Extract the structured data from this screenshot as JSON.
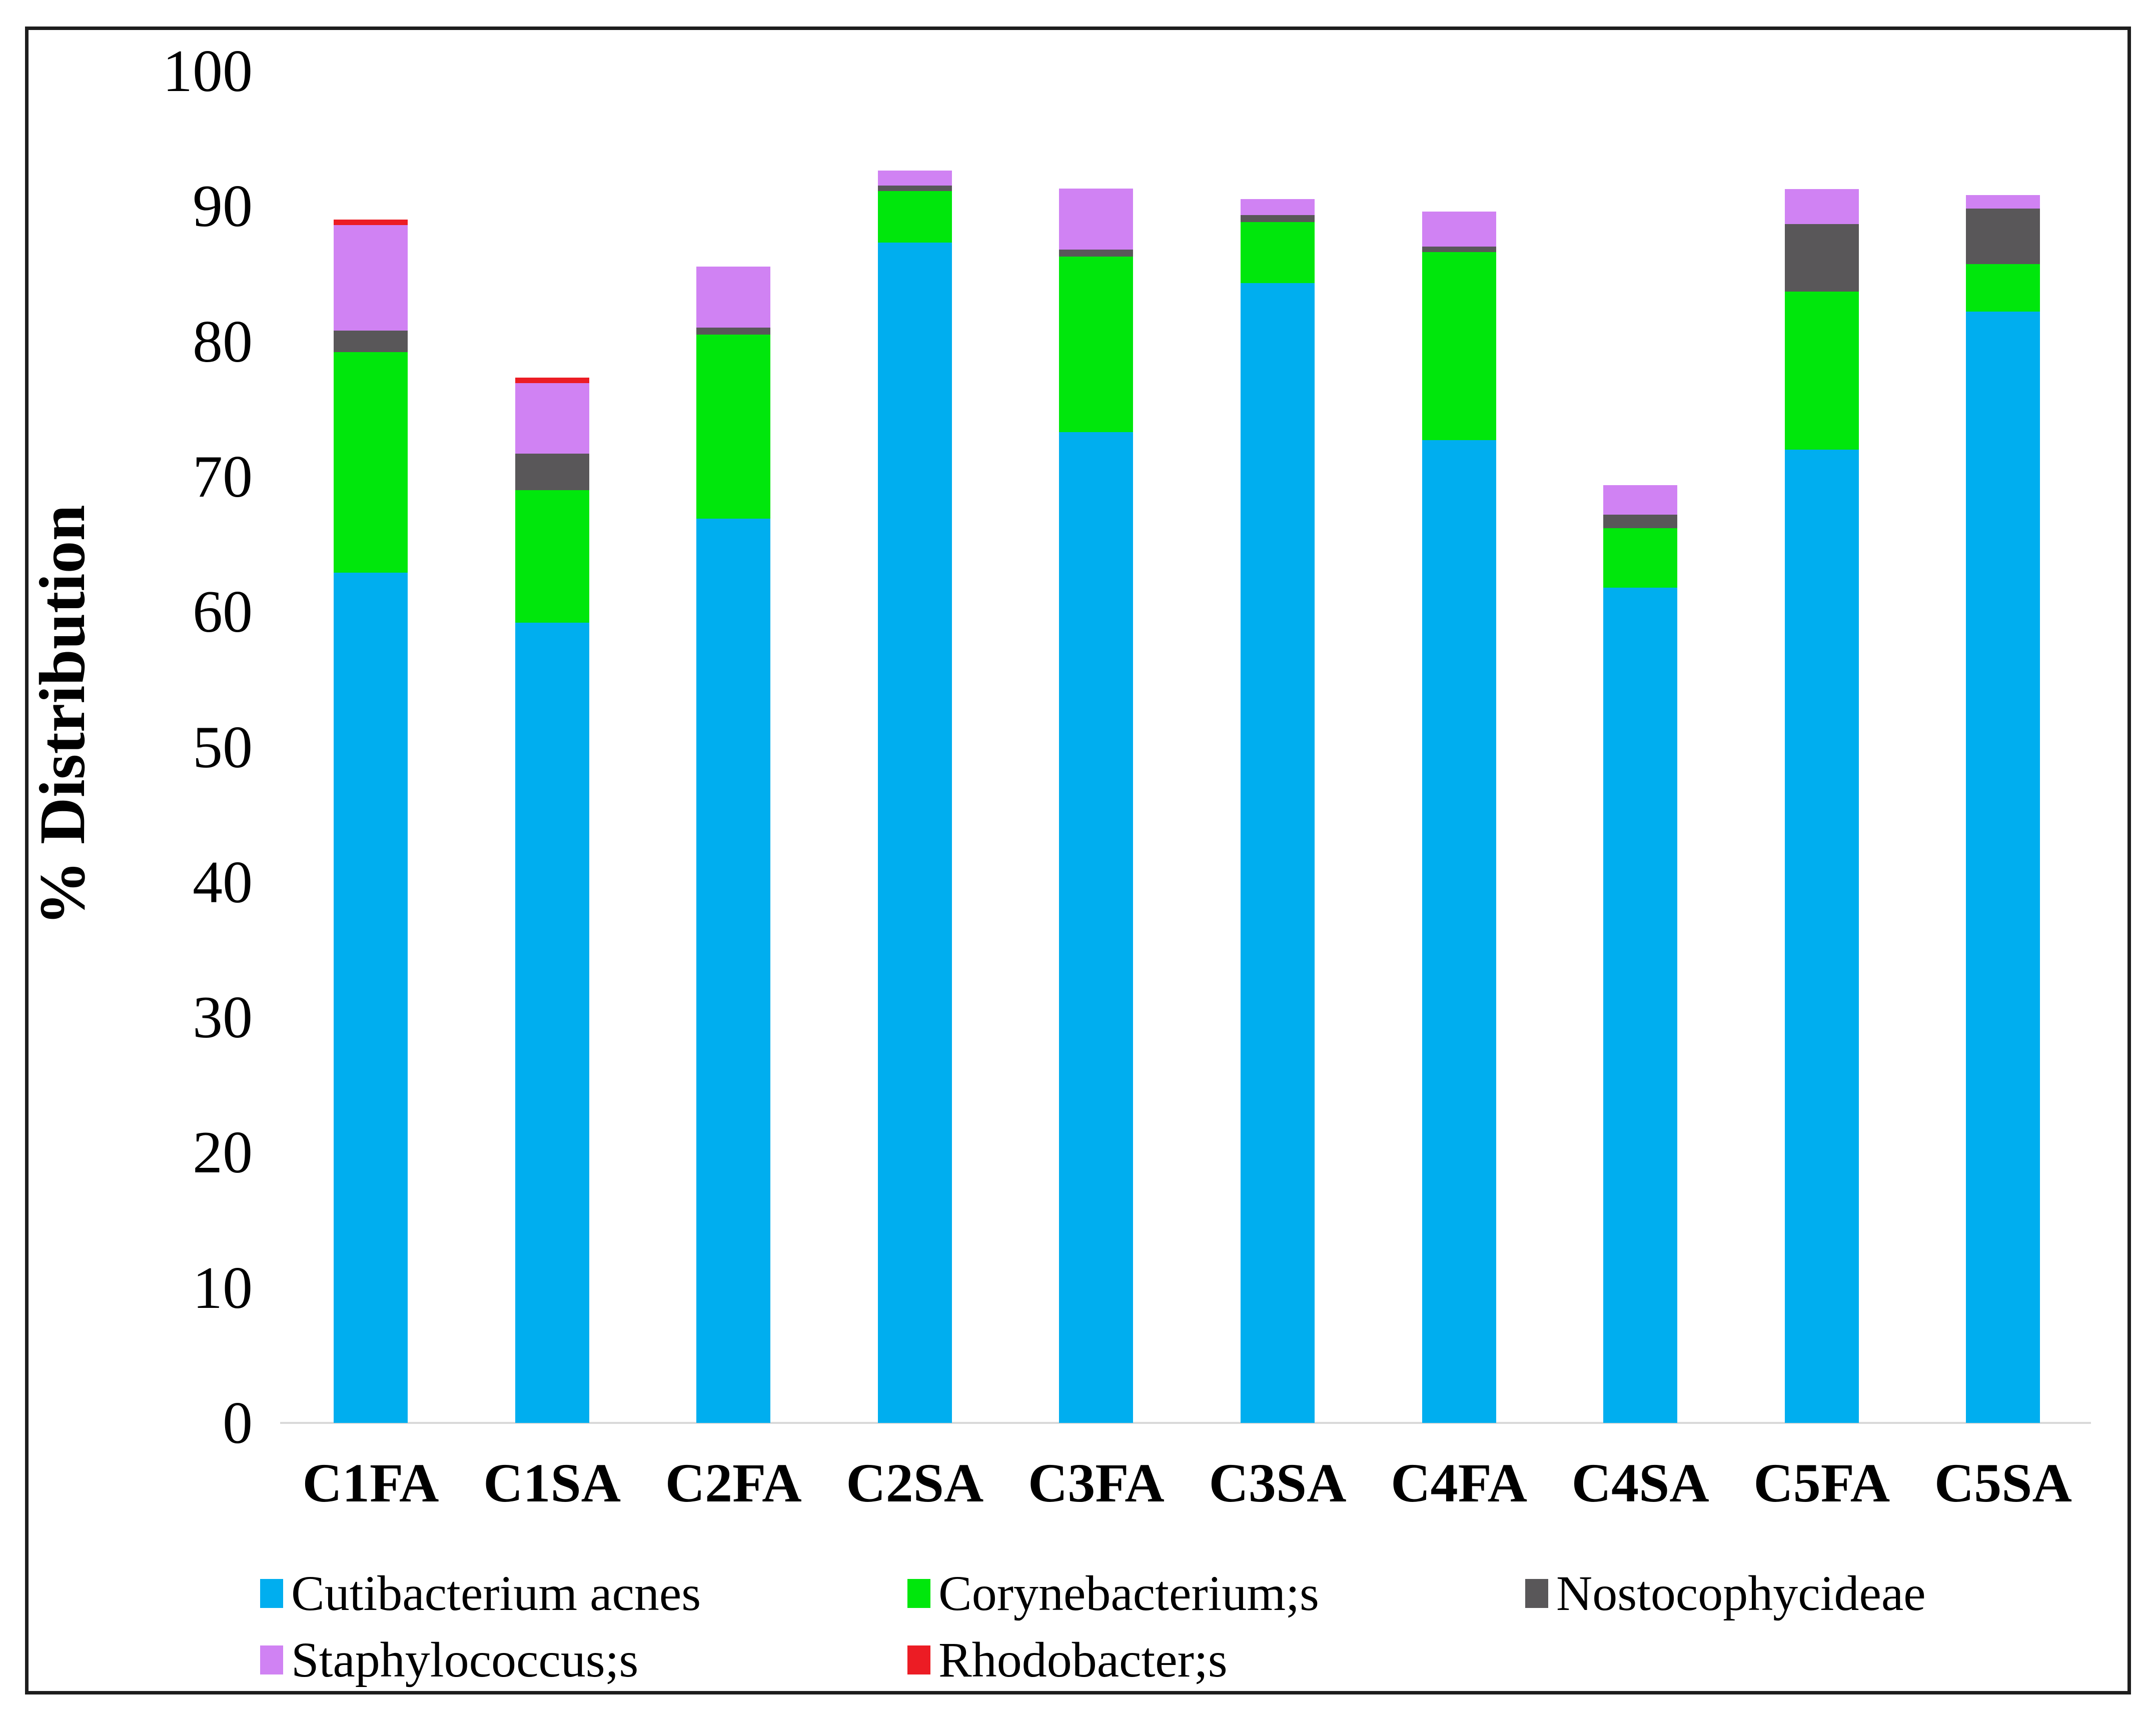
{
  "figure": {
    "background": "#ffffff",
    "frame_color": "#1e1e1e",
    "axis_line_color": "#d9d9d9"
  },
  "chart_data": {
    "type": "bar",
    "stacked": true,
    "title": "",
    "xlabel": "",
    "ylabel": "% Distribution",
    "ylim": [
      0,
      100
    ],
    "ytick_step": 10,
    "ytick_labels": [
      "0",
      "10",
      "20",
      "30",
      "40",
      "50",
      "60",
      "70",
      "80",
      "90",
      "100"
    ],
    "grid": false,
    "legend_position": "bottom",
    "categories": [
      "C1FA",
      "C1SA",
      "C2FA",
      "C2SA",
      "C3FA",
      "C3SA",
      "C4FA",
      "C4SA",
      "C5FA",
      "C5SA"
    ],
    "series": [
      {
        "name": "Cutibacterium acnes",
        "key": "cutibacterium-acnes",
        "color": "#00AEEF",
        "values": [
          62.9,
          59.2,
          66.9,
          87.3,
          73.3,
          84.3,
          72.7,
          61.8,
          72.0,
          82.2
        ]
      },
      {
        "name": "Corynebacterium;s",
        "key": "corynebacterium",
        "color": "#00E70C",
        "values": [
          16.3,
          9.8,
          13.6,
          3.8,
          13.0,
          4.5,
          13.9,
          4.4,
          11.7,
          3.5
        ]
      },
      {
        "name": "Nostocophycideae",
        "key": "nostocophycideae",
        "color": "#595759",
        "values": [
          1.6,
          2.7,
          0.5,
          0.4,
          0.5,
          0.5,
          0.4,
          1.0,
          5.0,
          4.1
        ]
      },
      {
        "name": "Staphylococcus;s",
        "key": "staphylococcus",
        "color": "#D082F3",
        "values": [
          7.8,
          5.2,
          4.5,
          1.1,
          4.5,
          1.2,
          2.6,
          2.2,
          2.6,
          1.0
        ]
      },
      {
        "name": "Rhodobacter;s",
        "key": "rhodobacter",
        "color": "#EC1C24",
        "values": [
          0.4,
          0.4,
          0,
          0,
          0,
          0,
          0,
          0,
          0,
          0
        ]
      }
    ]
  }
}
